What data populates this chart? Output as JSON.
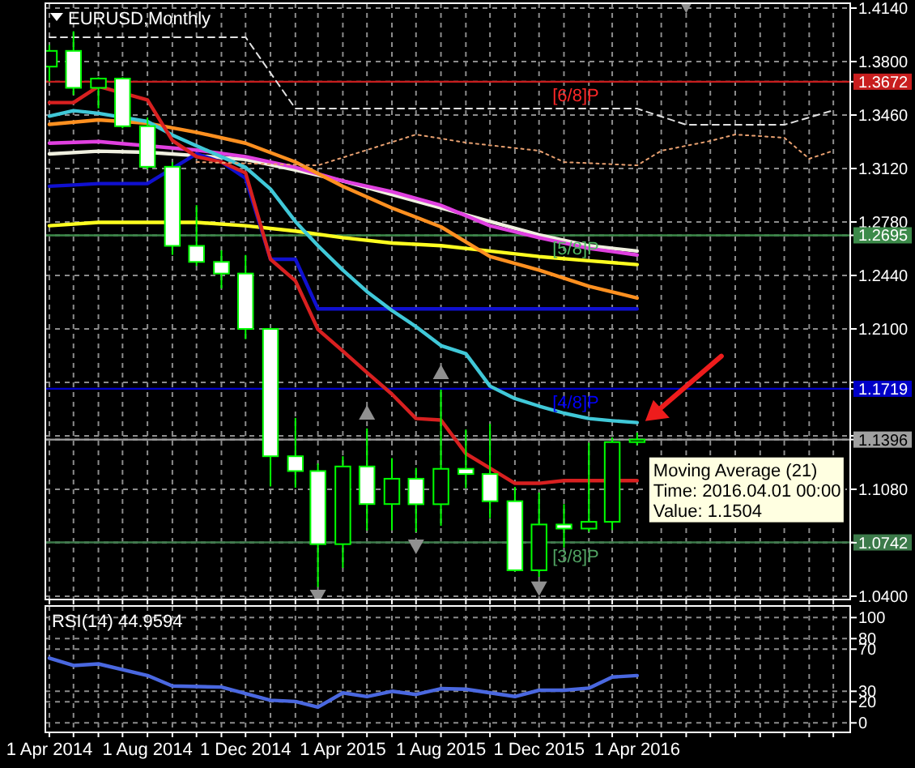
{
  "chart_data": [
    {
      "type": "candlestick",
      "title": "EURUSD,Monthly",
      "color": "#00ff00",
      "x": [
        "2014-04",
        "2014-05",
        "2014-06",
        "2014-07",
        "2014-08",
        "2014-09",
        "2014-10",
        "2014-11",
        "2014-12",
        "2015-01",
        "2015-02",
        "2015-03",
        "2015-04",
        "2015-05",
        "2015-06",
        "2015-07",
        "2015-08",
        "2015-09",
        "2015-10",
        "2015-11",
        "2015-12",
        "2016-01",
        "2016-02",
        "2016-03",
        "2016-04"
      ],
      "ohlc": [
        [
          1.3768,
          1.3906,
          1.3673,
          1.3868
        ],
        [
          1.3868,
          1.3993,
          1.3588,
          1.3633
        ],
        [
          1.3633,
          1.37,
          1.3503,
          1.3692
        ],
        [
          1.3692,
          1.37,
          1.3376,
          1.3389
        ],
        [
          1.3389,
          1.3444,
          1.3115,
          1.3131
        ],
        [
          1.3131,
          1.316,
          1.2571,
          1.2628
        ],
        [
          1.2628,
          1.2887,
          1.25,
          1.2526
        ],
        [
          1.2526,
          1.26,
          1.2357,
          1.2452
        ],
        [
          1.2452,
          1.257,
          1.2035,
          1.21
        ],
        [
          1.21,
          1.21,
          1.1098,
          1.129
        ],
        [
          1.129,
          1.1534,
          1.109,
          1.1196
        ],
        [
          1.1196,
          1.1244,
          1.0458,
          1.0731
        ],
        [
          1.0731,
          1.129,
          1.058,
          1.1225
        ],
        [
          1.1225,
          1.1467,
          1.0818,
          1.0986
        ],
        [
          1.0986,
          1.1278,
          1.0819,
          1.1147
        ],
        [
          1.1147,
          1.1216,
          1.0808,
          1.0985
        ],
        [
          1.0985,
          1.1714,
          1.0848,
          1.121
        ],
        [
          1.121,
          1.146,
          1.1086,
          1.1177
        ],
        [
          1.1177,
          1.1495,
          1.0896,
          1.1004
        ],
        [
          1.1004,
          1.1095,
          1.0557,
          1.0565
        ],
        [
          1.0565,
          1.1059,
          1.0523,
          1.0856
        ],
        [
          1.0856,
          1.0985,
          1.071,
          1.083
        ],
        [
          1.083,
          1.1376,
          1.081,
          1.0873
        ],
        [
          1.0873,
          1.141,
          1.0821,
          1.138
        ],
        [
          1.138,
          1.144,
          1.136,
          1.1396
        ]
      ],
      "colors": [
        "#000000",
        "#ffffff",
        "#000000",
        "#ffffff",
        "#ffffff",
        "#ffffff",
        "#ffffff",
        "#ffffff",
        "#ffffff",
        "#ffffff",
        "#ffffff",
        "#ffffff",
        "#000000",
        "#ffffff",
        "#000000",
        "#ffffff",
        "#000000",
        "#ffffff",
        "#ffffff",
        "#ffffff",
        "#000000",
        "#ffffff",
        "#000000",
        "#000000",
        "#000000"
      ],
      "series": [
        {
          "type": "line",
          "color": "#f0f0e0",
          "x": [
            "2014-04",
            "2014-06",
            "2014-08",
            "2014-10",
            "2014-12",
            "2015-02",
            "2015-04",
            "2015-06",
            "2015-08",
            "2015-10",
            "2015-12",
            "2016-02",
            "2016-04"
          ],
          "values": [
            1.3213,
            1.323,
            1.3223,
            1.3202,
            1.3178,
            1.311,
            1.3041,
            1.2955,
            1.2869,
            1.2783,
            1.2698,
            1.2629,
            1.2595
          ]
        },
        {
          "type": "line",
          "color": "#e040e0",
          "x": [
            "2014-04",
            "2014-06",
            "2014-08",
            "2014-10",
            "2014-12",
            "2015-02",
            "2015-04",
            "2015-06",
            "2015-08",
            "2015-10",
            "2015-12",
            "2016-02",
            "2016-04"
          ],
          "values": [
            1.3281,
            1.3291,
            null,
            1.3237,
            1.3195,
            1.3127,
            1.3041,
            1.2972,
            1.2886,
            1.2756,
            1.268,
            1.2612,
            1.257
          ]
        },
        {
          "type": "line",
          "color": "#ffff20",
          "x": [
            "2014-04",
            "2014-06",
            "2014-08",
            "2014-10",
            "2014-12",
            "2015-02",
            "2015-04",
            "2015-06",
            "2015-08",
            "2015-10",
            "2015-12",
            "2016-02",
            "2016-04"
          ],
          "values": [
            1.2756,
            1.2777,
            1.2777,
            1.2777,
            1.2756,
            1.2722,
            1.268,
            1.2646,
            1.2629,
            1.2595,
            1.256,
            1.2533,
            1.2509
          ]
        },
        {
          "type": "line",
          "color": "#ff9020",
          "x": [
            "2014-04",
            "2014-06",
            "2014-08",
            "2014-10",
            "2014-12",
            "2015-02",
            "2015-04",
            "2015-06",
            "2015-08",
            "2015-10",
            "2015-12",
            "2016-02",
            "2016-04"
          ],
          "values": [
            1.3401,
            1.3429,
            1.3408,
            1.335,
            1.3281,
            1.3161,
            1.3007,
            1.2869,
            1.2749,
            1.256,
            1.2474,
            1.2371,
            1.2296
          ]
        },
        {
          "type": "line",
          "color": "#1010d0",
          "x": [
            "2014-04",
            "2014-05",
            "2014-06",
            "2014-07",
            "2014-08",
            "2014-09",
            "2014-10",
            "2014-11",
            "2014-12",
            "2015-01",
            "2015-02",
            "2015-03",
            "2016-04"
          ],
          "values": [
            1.3007,
            1.3015,
            1.3024,
            1.3024,
            1.3024,
            null,
            1.3213,
            1.3161,
            1.3058,
            1.2543,
            1.2543,
            1.2227,
            1.2227
          ]
        },
        {
          "type": "line",
          "color": "#40c8d8",
          "x": [
            "2014-04",
            "2014-05",
            "2014-06",
            "2014-07",
            "2014-08",
            "2014-09",
            "2014-10",
            "2014-11",
            "2014-12",
            "2015-01",
            "2015-02",
            "2015-03",
            "2015-04",
            "2015-05",
            "2015-06",
            "2015-07",
            "2015-08",
            "2015-09",
            "2015-10",
            "2015-11",
            "2015-12",
            "2016-01",
            "2016-02",
            "2016-03",
            "2016-04"
          ],
          "values": [
            1.3453,
            1.3488,
            1.3471,
            null,
            1.3419,
            1.3333,
            1.3264,
            1.3195,
            1.3127,
            1.2989,
            1.2783,
            1.2629,
            1.2474,
            1.2337,
            1.2217,
            1.2114,
            1.1994,
            1.1942,
            1.1736,
            1.1657,
            1.1609,
            1.1564,
            1.153,
            1.1516,
            1.1504
          ]
        },
        {
          "type": "line",
          "color": "#d82020",
          "x": [
            "2014-04",
            "2014-05",
            "2014-06",
            "2014-07",
            "2014-08",
            "2014-09",
            "2014-10",
            "2014-11",
            "2014-12",
            "2015-01",
            "2015-02",
            "2015-03",
            "2015-04",
            "2015-05",
            "2015-06",
            "2015-07",
            "2015-08",
            "2015-09",
            "2015-10",
            "2015-11",
            "2015-12",
            "2016-01",
            "2016-02",
            "2016-03",
            "2016-04"
          ],
          "values": [
            1.3539,
            1.3539,
            1.3642,
            null,
            1.3556,
            1.3298,
            1.3195,
            1.3161,
            1.3092,
            1.2543,
            1.2406,
            1.2097,
            1.1959,
            1.1822,
            1.1685,
            1.153,
            1.152,
            1.1307,
            null,
            1.1118,
            1.1118,
            1.1135,
            1.1135,
            null,
            1.1135
          ]
        },
        {
          "type": "line",
          "color": "#e0e0e0",
          "line_style": "dashed",
          "x": [
            "2014-04",
            "2014-12",
            "2015-02",
            "2016-04",
            "2016-06",
            "2016-10",
            "2016-12"
          ],
          "values": [
            1.3955,
            1.3955,
            1.3501,
            1.3501,
            1.3398,
            1.3398,
            1.349
          ]
        },
        {
          "type": "line",
          "color": "#e8a070",
          "line_style": "dotted",
          "x": [
            "2014-10",
            "2015-03",
            "2015-07",
            "2015-09",
            "2015-12",
            "2016-01",
            "2016-04",
            "2016-05",
            "2016-07",
            "2016-08",
            "2016-10",
            "2016-11",
            "2016-12"
          ],
          "values": [
            1.3161,
            1.314,
            1.3336,
            1.3285,
            1.3233,
            1.3161,
            1.314,
            1.3233,
            1.3295,
            1.3336,
            1.3316,
            1.3182,
            1.3233
          ]
        },
        {
          "type": "scatter",
          "marker": "triangle",
          "color": "#909090",
          "x": [
            "2015-05",
            "2015-08"
          ],
          "values": [
            1.1564,
            1.1822
          ]
        },
        {
          "type": "scatter",
          "marker": "triangle",
          "color": "#909090",
          "x": [
            "2015-03",
            "2015-07",
            "2015-12",
            "2016-06"
          ],
          "values": [
            1.04,
            1.0719,
            1.0452,
            1.416
          ]
        }
      ],
      "xlim": [
        "2014-03-27",
        "2016-12-22"
      ],
      "xticks": [
        "2014-04",
        "2014-05",
        "2014-06",
        "2014-07",
        "2014-08",
        "2014-09",
        "2014-10",
        "2014-11",
        "2014-12",
        "2015-01",
        "2015-02",
        "2015-03",
        "2015-04",
        "2015-05",
        "2015-06",
        "2015-07",
        "2015-08",
        "2015-09",
        "2015-10",
        "2015-11",
        "2015-12",
        "2016-01",
        "2016-02",
        "2016-03",
        "2016-04",
        "2016-05",
        "2016-06",
        "2016-07",
        "2016-08",
        "2016-09",
        "2016-10",
        "2016-11",
        "2016-12"
      ],
      "ylim": [
        1.0379,
        1.4171
      ],
      "yticks": [
        {
          "value": 1.414,
          "label": "1.4140"
        },
        {
          "value": 1.38,
          "label": "1.3800"
        },
        {
          "value": 1.3672,
          "label": "1.3672"
        },
        {
          "value": 1.346,
          "label": "1.3460"
        },
        {
          "value": 1.312,
          "label": "1.3120"
        },
        {
          "value": 1.278,
          "label": "1.2780"
        },
        {
          "value": 1.2695,
          "label": "1.2695"
        },
        {
          "value": 1.244,
          "label": "1.2440"
        },
        {
          "value": 1.21,
          "label": "1.2100"
        },
        {
          "value": 1.176,
          "label": null
        },
        {
          "value": 1.1719,
          "label": "1.1719"
        },
        {
          "value": 1.142,
          "label": null
        },
        {
          "value": 1.1396,
          "label": "1.1396"
        },
        {
          "value": 1.108,
          "label": "1.1080"
        },
        {
          "value": 1.0742,
          "label": "1.0742"
        },
        {
          "value": 1.074,
          "label": null
        },
        {
          "value": 1.04,
          "label": "1.0400"
        }
      ],
      "grid": true,
      "tick_labels": "y",
      "ref_lines": [
        {
          "axis": "y",
          "value": 1.3672,
          "label": "[6/8]P",
          "color": "#c81e1e"
        },
        {
          "axis": "y",
          "value": 1.2695,
          "label": "[5/8]P",
          "color": "#3c8a4a"
        },
        {
          "axis": "y",
          "value": 1.1719,
          "label": "[4/8]P",
          "color": "#0000c8"
        },
        {
          "axis": "y",
          "value": 1.1396,
          "label": null,
          "color": "#a0a0a0"
        },
        {
          "axis": "y",
          "value": 1.0742,
          "label": "[3/8]P",
          "color": "#3c7a4a"
        }
      ],
      "annotations": [
        {
          "text": "Moving Average (21)\nTime: 2016.04.01 00:00\nValue: 1.1504",
          "x": "2016-04",
          "y": 1.1504
        }
      ]
    },
    {
      "type": "line",
      "title": "RSI(14) 44.9594",
      "color": "#4a68e0",
      "x": [
        "2014-04",
        "2014-05",
        "2014-06",
        "2014-08",
        "2014-09",
        "2014-11",
        "2015-01",
        "2015-02",
        "2015-03",
        "2015-04",
        "2015-05",
        "2015-06",
        "2015-07",
        "2015-08",
        "2015-09",
        "2015-11",
        "2015-12",
        "2016-01",
        "2016-02",
        "2016-03",
        "2016-04"
      ],
      "values": [
        61.5,
        54.5,
        56,
        45,
        35,
        34,
        21.5,
        20.3,
        15,
        28.5,
        25,
        30,
        27,
        32.5,
        32,
        25,
        31,
        31,
        33,
        43.5,
        44.9594
      ],
      "xlim": [
        "2014-03-27",
        "2016-12-22"
      ],
      "xticks": [
        {
          "value": "2014-04",
          "label": "1 Apr 2014"
        },
        {
          "value": "2014-05",
          "label": null
        },
        {
          "value": "2014-06",
          "label": null
        },
        {
          "value": "2014-07",
          "label": null
        },
        {
          "value": "2014-08",
          "label": "1 Aug 2014"
        },
        {
          "value": "2014-09",
          "label": null
        },
        {
          "value": "2014-10",
          "label": null
        },
        {
          "value": "2014-11",
          "label": null
        },
        {
          "value": "2014-12",
          "label": "1 Dec 2014"
        },
        {
          "value": "2015-01",
          "label": null
        },
        {
          "value": "2015-02",
          "label": null
        },
        {
          "value": "2015-03",
          "label": null
        },
        {
          "value": "2015-04",
          "label": "1 Apr 2015"
        },
        {
          "value": "2015-05",
          "label": null
        },
        {
          "value": "2015-06",
          "label": null
        },
        {
          "value": "2015-07",
          "label": null
        },
        {
          "value": "2015-08",
          "label": "1 Aug 2015"
        },
        {
          "value": "2015-09",
          "label": null
        },
        {
          "value": "2015-10",
          "label": null
        },
        {
          "value": "2015-11",
          "label": null
        },
        {
          "value": "2015-12",
          "label": "1 Dec 2015"
        },
        {
          "value": "2016-01",
          "label": null
        },
        {
          "value": "2016-02",
          "label": null
        },
        {
          "value": "2016-03",
          "label": null
        },
        {
          "value": "2016-04",
          "label": "1 Apr 2016"
        },
        {
          "value": "2016-05",
          "label": null
        },
        {
          "value": "2016-06",
          "label": null
        },
        {
          "value": "2016-07",
          "label": null
        },
        {
          "value": "2016-08",
          "label": null
        },
        {
          "value": "2016-09",
          "label": null
        },
        {
          "value": "2016-10",
          "label": null
        },
        {
          "value": "2016-11",
          "label": null
        },
        {
          "value": "2016-12",
          "label": null
        }
      ],
      "ylim": [
        -9,
        111
      ],
      "yticks": [
        100,
        80,
        70,
        30,
        20,
        0
      ],
      "grid": true
    }
  ]
}
